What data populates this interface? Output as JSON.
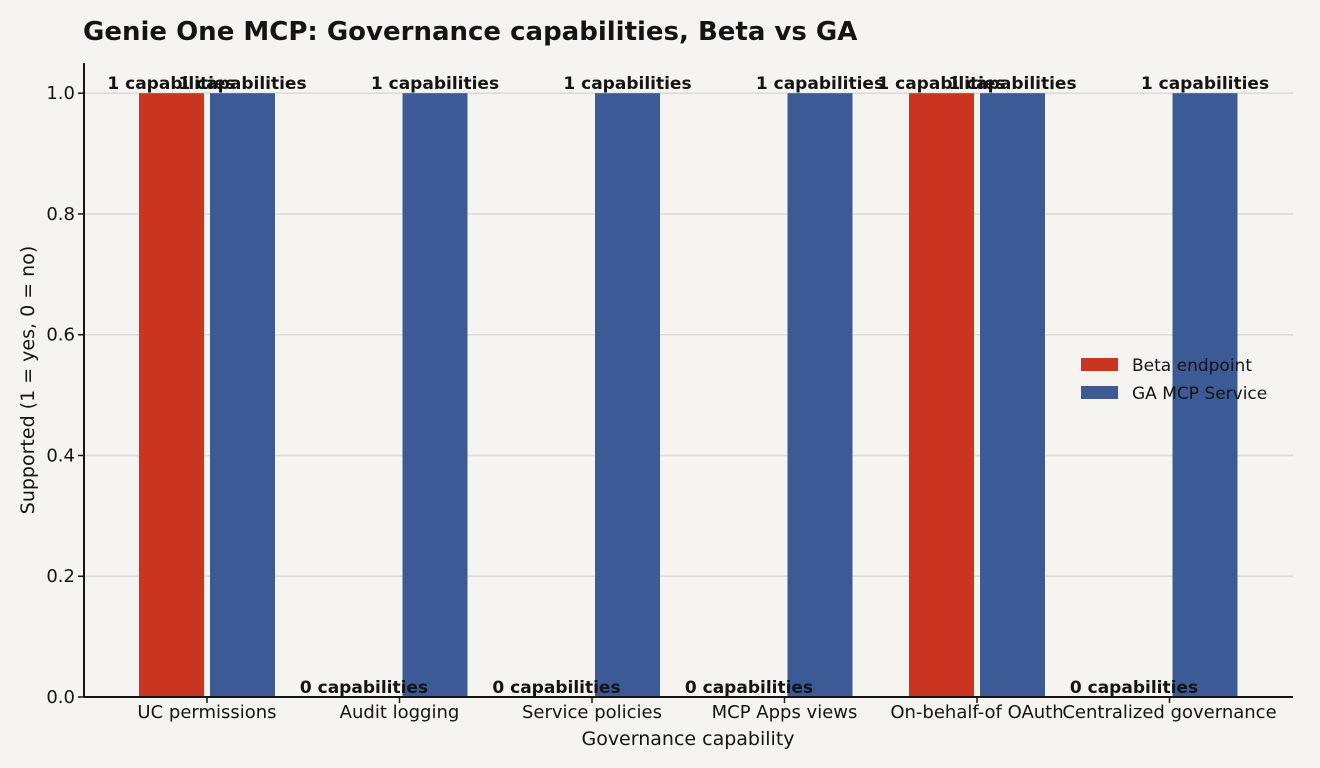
{
  "chart_data": {
    "type": "bar",
    "title": "Genie One MCP: Governance capabilities, Beta vs GA",
    "xlabel": "Governance capability",
    "ylabel": "Supported (1 = yes, 0 = no)",
    "categories": [
      "UC permissions",
      "Audit logging",
      "Service policies",
      "MCP Apps views",
      "On-behalf-of OAuth",
      "Centralized governance"
    ],
    "series": [
      {
        "name": "Beta endpoint",
        "values": [
          1,
          0,
          0,
          0,
          1,
          0
        ],
        "color": "#c93520"
      },
      {
        "name": "GA MCP Service",
        "values": [
          1,
          1,
          1,
          1,
          1,
          1
        ],
        "color": "#3c5a96"
      }
    ],
    "value_label_suffix": " capabilities",
    "ylim": [
      0,
      1.05
    ],
    "yticks": [
      "0.0",
      "0.2",
      "0.4",
      "0.6",
      "0.8",
      "1.0"
    ],
    "grid": true,
    "legend_position": "right"
  }
}
